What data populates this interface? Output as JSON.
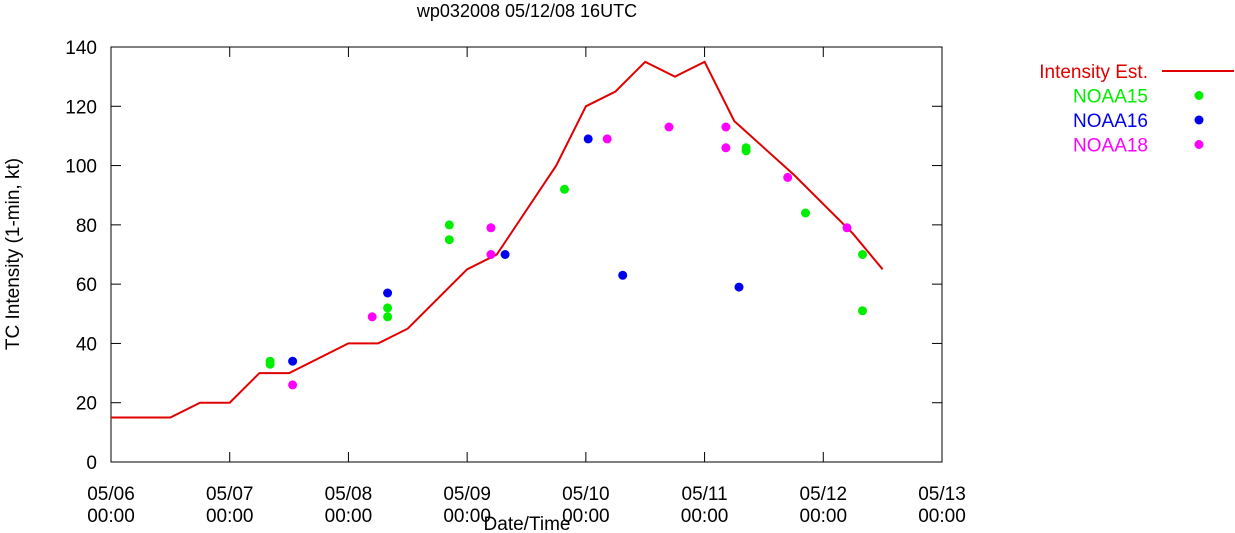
{
  "chart_data": {
    "type": "line",
    "title": "wp032008 05/12/08 16UTC",
    "xlabel": "Date/Time",
    "ylabel": "TC Intensity (1-min, kt)",
    "xlim": [
      0,
      7
    ],
    "ylim": [
      0,
      140
    ],
    "x_unit": "days since 05/06 00:00",
    "xticks": [
      {
        "value": 0,
        "date": "05/06",
        "time": "00:00"
      },
      {
        "value": 1,
        "date": "05/07",
        "time": "00:00"
      },
      {
        "value": 2,
        "date": "05/08",
        "time": "00:00"
      },
      {
        "value": 3,
        "date": "05/09",
        "time": "00:00"
      },
      {
        "value": 4,
        "date": "05/10",
        "time": "00:00"
      },
      {
        "value": 5,
        "date": "05/11",
        "time": "00:00"
      },
      {
        "value": 6,
        "date": "05/12",
        "time": "00:00"
      },
      {
        "value": 7,
        "date": "05/13",
        "time": "00:00"
      }
    ],
    "yticks": [
      0,
      20,
      40,
      60,
      80,
      100,
      120,
      140
    ],
    "legend_position": "outside-top-right",
    "series": [
      {
        "name": "Intensity Est.",
        "style": "line",
        "color": "#e00000",
        "points": [
          [
            0.0,
            15
          ],
          [
            0.5,
            15
          ],
          [
            0.75,
            20
          ],
          [
            1.0,
            20
          ],
          [
            1.25,
            30
          ],
          [
            1.5,
            30
          ],
          [
            2.0,
            40
          ],
          [
            2.25,
            40
          ],
          [
            2.5,
            45
          ],
          [
            3.0,
            65
          ],
          [
            3.25,
            70
          ],
          [
            3.75,
            100
          ],
          [
            4.0,
            120
          ],
          [
            4.25,
            125
          ],
          [
            4.5,
            135
          ],
          [
            4.75,
            130
          ],
          [
            5.0,
            135
          ],
          [
            5.25,
            115
          ],
          [
            5.75,
            97
          ],
          [
            6.25,
            77
          ],
          [
            6.5,
            65
          ]
        ]
      },
      {
        "name": "NOAA15",
        "style": "points",
        "color": "#00ee00",
        "points": [
          [
            1.34,
            34
          ],
          [
            1.34,
            33
          ],
          [
            2.33,
            52
          ],
          [
            2.33,
            49
          ],
          [
            2.85,
            80
          ],
          [
            2.85,
            75
          ],
          [
            3.82,
            92
          ],
          [
            5.35,
            106
          ],
          [
            5.35,
            105
          ],
          [
            5.85,
            84
          ],
          [
            6.33,
            70
          ],
          [
            6.33,
            51
          ]
        ]
      },
      {
        "name": "NOAA16",
        "style": "points",
        "color": "#0000ee",
        "points": [
          [
            1.53,
            34
          ],
          [
            2.33,
            57
          ],
          [
            3.32,
            70
          ],
          [
            4.02,
            109
          ],
          [
            4.31,
            63
          ],
          [
            5.29,
            59
          ]
        ]
      },
      {
        "name": "NOAA18",
        "style": "points",
        "color": "#ff00ff",
        "points": [
          [
            1.53,
            26
          ],
          [
            2.2,
            49
          ],
          [
            3.2,
            79
          ],
          [
            3.2,
            70
          ],
          [
            4.18,
            109
          ],
          [
            4.7,
            113
          ],
          [
            5.18,
            113
          ],
          [
            5.18,
            106
          ],
          [
            5.7,
            96
          ],
          [
            6.2,
            79
          ]
        ]
      }
    ]
  }
}
